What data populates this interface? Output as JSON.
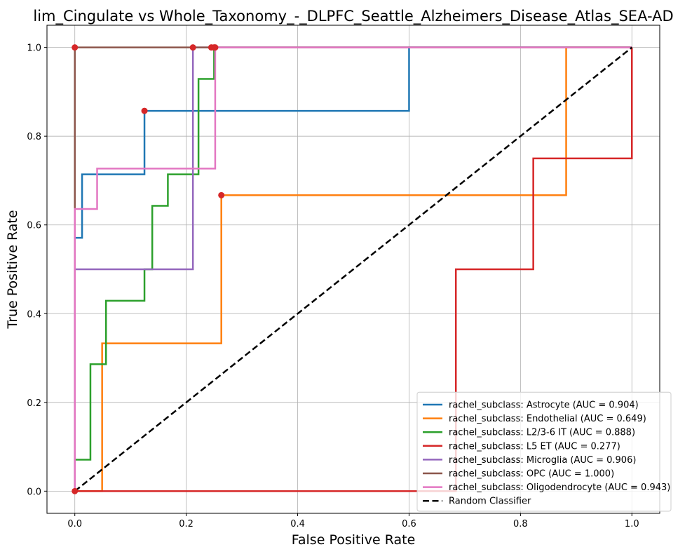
{
  "chart_data": {
    "type": "line",
    "title": "lim_Cingulate vs Whole_Taxonomy_-_DLPFC_Seattle_Alzheimers_Disease_Atlas_SEA-AD",
    "xlabel": "False Positive Rate",
    "ylabel": "True Positive Rate",
    "xlim": [
      -0.05,
      1.05
    ],
    "ylim": [
      -0.05,
      1.05
    ],
    "xticks": [
      "0.0",
      "0.2",
      "0.4",
      "0.6",
      "0.8",
      "1.0"
    ],
    "yticks": [
      "0.0",
      "0.2",
      "0.4",
      "0.6",
      "0.8",
      "1.0"
    ],
    "grid": true,
    "legend_position": "bottom-right",
    "series": [
      {
        "name": "rachel_subclass: Astrocyte (AUC = 0.904)",
        "color": "#1f77b4",
        "x": [
          0,
          0,
          0.013,
          0.013,
          0.125,
          0.125,
          0.6,
          0.6,
          1.0
        ],
        "y": [
          0,
          0.571,
          0.571,
          0.714,
          0.714,
          0.857,
          0.857,
          1.0,
          1.0
        ],
        "marker": [
          0.125,
          0.857
        ]
      },
      {
        "name": "rachel_subclass: Endothelial (AUC = 0.649)",
        "color": "#ff7f0e",
        "x": [
          0,
          0.049,
          0.049,
          0.263,
          0.263,
          0.882,
          0.882,
          1.0
        ],
        "y": [
          0,
          0,
          0.333,
          0.333,
          0.667,
          0.667,
          1.0,
          1.0
        ],
        "marker": [
          0.263,
          0.667
        ]
      },
      {
        "name": "rachel_subclass: L2/3-6 IT (AUC = 0.888)",
        "color": "#2ca02c",
        "x": [
          0,
          0,
          0.028,
          0.028,
          0.056,
          0.056,
          0.125,
          0.125,
          0.139,
          0.139,
          0.167,
          0.167,
          0.222,
          0.222,
          0.25,
          0.25,
          1.0
        ],
        "y": [
          0,
          0.071,
          0.071,
          0.286,
          0.286,
          0.429,
          0.429,
          0.5,
          0.5,
          0.643,
          0.643,
          0.714,
          0.714,
          0.929,
          0.929,
          1.0,
          1.0
        ],
        "marker": [
          0.25,
          1.0
        ]
      },
      {
        "name": "rachel_subclass: L5 ET (AUC = 0.277)",
        "color": "#d62728",
        "x": [
          0,
          0.684,
          0.684,
          0.823,
          0.823,
          1.0,
          1.0
        ],
        "y": [
          0,
          0,
          0.5,
          0.5,
          0.75,
          0.75,
          1.0
        ],
        "marker": [
          0,
          0
        ]
      },
      {
        "name": "rachel_subclass: Microglia (AUC = 0.906)",
        "color": "#9467bd",
        "x": [
          0,
          0,
          0.212,
          0.212,
          1.0
        ],
        "y": [
          0,
          0.5,
          0.5,
          1.0,
          1.0
        ],
        "marker": [
          0.212,
          1.0
        ]
      },
      {
        "name": "rachel_subclass: OPC (AUC = 1.000)",
        "color": "#8c564b",
        "x": [
          0,
          0,
          1.0
        ],
        "y": [
          0,
          1.0,
          1.0
        ],
        "marker": [
          0,
          1.0
        ]
      },
      {
        "name": "rachel_subclass: Oligodendrocyte (AUC = 0.943)",
        "color": "#e377c2",
        "x": [
          0,
          0,
          0.04,
          0.04,
          0.252,
          0.252,
          1.0
        ],
        "y": [
          0,
          0.636,
          0.636,
          0.727,
          0.727,
          1.0,
          1.0
        ],
        "marker": [
          0.252,
          1.0
        ]
      },
      {
        "name": "Random Classifier",
        "color": "#000000",
        "dashed": true,
        "x": [
          0,
          1.0
        ],
        "y": [
          0,
          1.0
        ]
      }
    ],
    "extra_markers": [
      [
        0.245,
        1.0
      ]
    ],
    "marker_color": "#d62728"
  }
}
